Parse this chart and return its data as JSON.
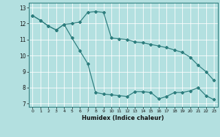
{
  "xlabel": "Humidex (Indice chaleur)",
  "background_color": "#b3e0e0",
  "grid_color": "#ffffff",
  "line_color": "#2d7d7d",
  "xlim": [
    -0.5,
    23.5
  ],
  "ylim": [
    6.8,
    13.3
  ],
  "xticks": [
    0,
    1,
    2,
    3,
    4,
    5,
    6,
    7,
    8,
    9,
    10,
    11,
    12,
    13,
    14,
    15,
    16,
    17,
    18,
    19,
    20,
    21,
    22,
    23
  ],
  "yticks": [
    7,
    8,
    9,
    10,
    11,
    12,
    13
  ],
  "series1_x": [
    0,
    1,
    2,
    3,
    4,
    5,
    6,
    7,
    8,
    9,
    10,
    11,
    12,
    13,
    14,
    15,
    16,
    17,
    18,
    19,
    20,
    21,
    22,
    23
  ],
  "series1_y": [
    12.5,
    12.2,
    11.85,
    11.6,
    11.95,
    12.0,
    12.1,
    12.7,
    12.75,
    12.7,
    11.1,
    11.05,
    11.0,
    10.85,
    10.8,
    10.7,
    10.6,
    10.5,
    10.35,
    10.2,
    9.9,
    9.4,
    9.0,
    8.45
  ],
  "series2_x": [
    0,
    1,
    2,
    3,
    4,
    5,
    6,
    7,
    8,
    9,
    10,
    11,
    12,
    13,
    14,
    15,
    16,
    17,
    18,
    19,
    20,
    21,
    22,
    23
  ],
  "series2_y": [
    12.5,
    12.2,
    11.85,
    11.6,
    11.95,
    11.1,
    10.3,
    9.5,
    7.7,
    7.6,
    7.55,
    7.5,
    7.45,
    7.75,
    7.75,
    7.7,
    7.3,
    7.45,
    7.7,
    7.7,
    7.8,
    8.0,
    7.5,
    7.25
  ]
}
